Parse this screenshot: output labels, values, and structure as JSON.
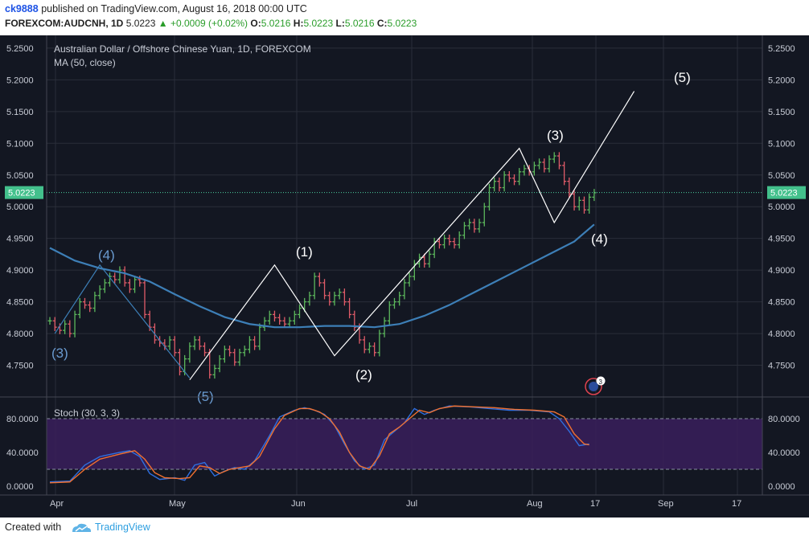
{
  "header": {
    "username": "ck9888",
    "published_text": "published on TradingView.com, August 16, 2018 00:00 UTC",
    "symbol": "FOREXCOM:AUDCNH, 1D",
    "last": "5.0223",
    "change": "+0.0009 (+0.02%)",
    "o_label": "O:",
    "o_value": "5.0216",
    "h_label": "H:",
    "h_value": "5.0223",
    "l_label": "L:",
    "l_value": "5.0216",
    "c_label": "C:",
    "c_value": "5.0223"
  },
  "legend": {
    "title": "Australian Dollar / Offshore Chinese Yuan, 1D, FOREXCOM",
    "ma_label": "MA (50, close)",
    "stoch_label": "Stoch (30, 3, 3)"
  },
  "footer": {
    "created": "Created with",
    "brand": "TradingView"
  },
  "colors": {
    "background": "#131722",
    "up": "#5cb85c",
    "down": "#e05b68",
    "ma": "#3d7fb7",
    "price_line": "#4cd1a0",
    "stoch_k": "#2f6fe0",
    "stoch_d": "#f07030",
    "stoch_band": "#3a1f5c"
  },
  "chart_data": {
    "type": "bar",
    "price_axis": {
      "min": 4.7,
      "max": 5.26,
      "ticks": [
        "5.2500",
        "5.2000",
        "5.1500",
        "5.1000",
        "5.0500",
        "5.0000",
        "4.9500",
        "4.9000",
        "4.8500",
        "4.8000",
        "4.7500"
      ]
    },
    "current_price_label": "5.0223",
    "time_axis": {
      "labels": [
        "Apr",
        "May",
        "Jun",
        "Jul",
        "Aug",
        "17",
        "Sep",
        "17"
      ]
    },
    "price_series": [
      {
        "d": 0,
        "v": 4.82
      },
      {
        "d": 1,
        "v": 4.81
      },
      {
        "d": 2,
        "v": 4.805
      },
      {
        "d": 3,
        "v": 4.815
      },
      {
        "d": 4,
        "v": 4.8
      },
      {
        "d": 5,
        "v": 4.83
      },
      {
        "d": 6,
        "v": 4.85
      },
      {
        "d": 7,
        "v": 4.845
      },
      {
        "d": 8,
        "v": 4.84
      },
      {
        "d": 9,
        "v": 4.86
      },
      {
        "d": 10,
        "v": 4.87
      },
      {
        "d": 11,
        "v": 4.88
      },
      {
        "d": 12,
        "v": 4.89
      },
      {
        "d": 13,
        "v": 4.885
      },
      {
        "d": 14,
        "v": 4.9
      },
      {
        "d": 15,
        "v": 4.88
      },
      {
        "d": 16,
        "v": 4.87
      },
      {
        "d": 17,
        "v": 4.885
      },
      {
        "d": 18,
        "v": 4.88
      },
      {
        "d": 19,
        "v": 4.83
      },
      {
        "d": 20,
        "v": 4.81
      },
      {
        "d": 21,
        "v": 4.79
      },
      {
        "d": 22,
        "v": 4.785
      },
      {
        "d": 23,
        "v": 4.78
      },
      {
        "d": 24,
        "v": 4.79
      },
      {
        "d": 25,
        "v": 4.77
      },
      {
        "d": 26,
        "v": 4.74
      },
      {
        "d": 27,
        "v": 4.76
      },
      {
        "d": 28,
        "v": 4.78
      },
      {
        "d": 29,
        "v": 4.79
      },
      {
        "d": 30,
        "v": 4.78
      },
      {
        "d": 31,
        "v": 4.77
      },
      {
        "d": 32,
        "v": 4.735
      },
      {
        "d": 33,
        "v": 4.745
      },
      {
        "d": 34,
        "v": 4.76
      },
      {
        "d": 35,
        "v": 4.775
      },
      {
        "d": 36,
        "v": 4.77
      },
      {
        "d": 37,
        "v": 4.755
      },
      {
        "d": 38,
        "v": 4.77
      },
      {
        "d": 39,
        "v": 4.775
      },
      {
        "d": 40,
        "v": 4.79
      },
      {
        "d": 41,
        "v": 4.78
      },
      {
        "d": 42,
        "v": 4.81
      },
      {
        "d": 43,
        "v": 4.82
      },
      {
        "d": 44,
        "v": 4.83
      },
      {
        "d": 45,
        "v": 4.825
      },
      {
        "d": 46,
        "v": 4.82
      },
      {
        "d": 47,
        "v": 4.815
      },
      {
        "d": 48,
        "v": 4.82
      },
      {
        "d": 49,
        "v": 4.83
      },
      {
        "d": 50,
        "v": 4.84
      },
      {
        "d": 51,
        "v": 4.85
      },
      {
        "d": 52,
        "v": 4.86
      },
      {
        "d": 53,
        "v": 4.89
      },
      {
        "d": 54,
        "v": 4.88
      },
      {
        "d": 55,
        "v": 4.86
      },
      {
        "d": 56,
        "v": 4.85
      },
      {
        "d": 57,
        "v": 4.86
      },
      {
        "d": 58,
        "v": 4.865
      },
      {
        "d": 59,
        "v": 4.85
      },
      {
        "d": 60,
        "v": 4.83
      },
      {
        "d": 61,
        "v": 4.81
      },
      {
        "d": 62,
        "v": 4.79
      },
      {
        "d": 63,
        "v": 4.775
      },
      {
        "d": 64,
        "v": 4.78
      },
      {
        "d": 65,
        "v": 4.77
      },
      {
        "d": 66,
        "v": 4.8
      },
      {
        "d": 67,
        "v": 4.82
      },
      {
        "d": 68,
        "v": 4.845
      },
      {
        "d": 69,
        "v": 4.85
      },
      {
        "d": 70,
        "v": 4.86
      },
      {
        "d": 71,
        "v": 4.88
      },
      {
        "d": 72,
        "v": 4.89
      },
      {
        "d": 73,
        "v": 4.91
      },
      {
        "d": 74,
        "v": 4.92
      },
      {
        "d": 75,
        "v": 4.91
      },
      {
        "d": 76,
        "v": 4.925
      },
      {
        "d": 77,
        "v": 4.945
      },
      {
        "d": 78,
        "v": 4.94
      },
      {
        "d": 79,
        "v": 4.95
      },
      {
        "d": 80,
        "v": 4.945
      },
      {
        "d": 81,
        "v": 4.94
      },
      {
        "d": 82,
        "v": 4.955
      },
      {
        "d": 83,
        "v": 4.97
      },
      {
        "d": 84,
        "v": 4.975
      },
      {
        "d": 85,
        "v": 4.965
      },
      {
        "d": 86,
        "v": 4.975
      },
      {
        "d": 87,
        "v": 5.0
      },
      {
        "d": 88,
        "v": 5.03
      },
      {
        "d": 89,
        "v": 5.04
      },
      {
        "d": 90,
        "v": 5.03
      },
      {
        "d": 91,
        "v": 5.05
      },
      {
        "d": 92,
        "v": 5.045
      },
      {
        "d": 93,
        "v": 5.04
      },
      {
        "d": 94,
        "v": 5.055
      },
      {
        "d": 95,
        "v": 5.06
      },
      {
        "d": 96,
        "v": 5.055
      },
      {
        "d": 97,
        "v": 5.065
      },
      {
        "d": 98,
        "v": 5.07
      },
      {
        "d": 99,
        "v": 5.06
      },
      {
        "d": 100,
        "v": 5.075
      },
      {
        "d": 101,
        "v": 5.08
      },
      {
        "d": 102,
        "v": 5.065
      },
      {
        "d": 103,
        "v": 5.04
      },
      {
        "d": 104,
        "v": 5.02
      },
      {
        "d": 105,
        "v": 5.0
      },
      {
        "d": 106,
        "v": 5.01
      },
      {
        "d": 107,
        "v": 4.995
      },
      {
        "d": 108,
        "v": 5.015
      },
      {
        "d": 109,
        "v": 5.022
      }
    ],
    "ma_series": [
      {
        "d": 0,
        "v": 4.935
      },
      {
        "d": 5,
        "v": 4.915
      },
      {
        "d": 10,
        "v": 4.903
      },
      {
        "d": 15,
        "v": 4.895
      },
      {
        "d": 20,
        "v": 4.882
      },
      {
        "d": 25,
        "v": 4.862
      },
      {
        "d": 30,
        "v": 4.843
      },
      {
        "d": 35,
        "v": 4.826
      },
      {
        "d": 40,
        "v": 4.815
      },
      {
        "d": 45,
        "v": 4.81
      },
      {
        "d": 50,
        "v": 4.81
      },
      {
        "d": 55,
        "v": 4.812
      },
      {
        "d": 60,
        "v": 4.812
      },
      {
        "d": 65,
        "v": 4.81
      },
      {
        "d": 70,
        "v": 4.815
      },
      {
        "d": 75,
        "v": 4.828
      },
      {
        "d": 80,
        "v": 4.845
      },
      {
        "d": 85,
        "v": 4.865
      },
      {
        "d": 90,
        "v": 4.885
      },
      {
        "d": 95,
        "v": 4.905
      },
      {
        "d": 100,
        "v": 4.925
      },
      {
        "d": 105,
        "v": 4.945
      },
      {
        "d": 109,
        "v": 4.972
      }
    ],
    "elliott_old": {
      "points": [
        {
          "d": 1,
          "v": 4.8
        },
        {
          "d": 10,
          "v": 4.908
        },
        {
          "d": 28,
          "v": 4.73
        }
      ],
      "labels": [
        "(3)",
        "(4)",
        "(5)"
      ]
    },
    "elliott_new": {
      "points": [
        {
          "d": 28,
          "v": 4.727
        },
        {
          "d": 45,
          "v": 4.908
        },
        {
          "d": 57,
          "v": 4.765
        },
        {
          "d": 94,
          "v": 5.092
        },
        {
          "d": 101,
          "v": 4.975
        },
        {
          "d": 117,
          "v": 5.182
        }
      ],
      "labels": [
        "(1)",
        "(2)",
        "(3)",
        "(4)",
        "(5)"
      ]
    },
    "stoch": {
      "axis_ticks": [
        "80.0000",
        "40.0000",
        "0.0000"
      ],
      "k": [
        {
          "d": 0,
          "v": 5
        },
        {
          "d": 4,
          "v": 6
        },
        {
          "d": 7,
          "v": 25
        },
        {
          "d": 10,
          "v": 35
        },
        {
          "d": 14,
          "v": 40
        },
        {
          "d": 16,
          "v": 42
        },
        {
          "d": 18,
          "v": 35
        },
        {
          "d": 20,
          "v": 15
        },
        {
          "d": 22,
          "v": 8
        },
        {
          "d": 25,
          "v": 10
        },
        {
          "d": 27,
          "v": 7
        },
        {
          "d": 29,
          "v": 25
        },
        {
          "d": 31,
          "v": 28
        },
        {
          "d": 33,
          "v": 12
        },
        {
          "d": 35,
          "v": 18
        },
        {
          "d": 37,
          "v": 22
        },
        {
          "d": 39,
          "v": 20
        },
        {
          "d": 41,
          "v": 30
        },
        {
          "d": 44,
          "v": 60
        },
        {
          "d": 46,
          "v": 82
        },
        {
          "d": 49,
          "v": 90
        },
        {
          "d": 51,
          "v": 93
        },
        {
          "d": 53,
          "v": 90
        },
        {
          "d": 55,
          "v": 85
        },
        {
          "d": 57,
          "v": 72
        },
        {
          "d": 59,
          "v": 50
        },
        {
          "d": 61,
          "v": 30
        },
        {
          "d": 63,
          "v": 20
        },
        {
          "d": 65,
          "v": 25
        },
        {
          "d": 67,
          "v": 55
        },
        {
          "d": 69,
          "v": 65
        },
        {
          "d": 71,
          "v": 75
        },
        {
          "d": 73,
          "v": 92
        },
        {
          "d": 75,
          "v": 85
        },
        {
          "d": 77,
          "v": 90
        },
        {
          "d": 80,
          "v": 95
        },
        {
          "d": 84,
          "v": 94
        },
        {
          "d": 88,
          "v": 92
        },
        {
          "d": 92,
          "v": 90
        },
        {
          "d": 96,
          "v": 90
        },
        {
          "d": 100,
          "v": 88
        },
        {
          "d": 102,
          "v": 80
        },
        {
          "d": 104,
          "v": 65
        },
        {
          "d": 106,
          "v": 48
        },
        {
          "d": 108,
          "v": 50
        }
      ],
      "d": [
        {
          "d": 0,
          "v": 4
        },
        {
          "d": 4,
          "v": 5
        },
        {
          "d": 7,
          "v": 20
        },
        {
          "d": 10,
          "v": 32
        },
        {
          "d": 14,
          "v": 38
        },
        {
          "d": 17,
          "v": 42
        },
        {
          "d": 19,
          "v": 32
        },
        {
          "d": 21,
          "v": 16
        },
        {
          "d": 23,
          "v": 10
        },
        {
          "d": 26,
          "v": 9
        },
        {
          "d": 28,
          "v": 10
        },
        {
          "d": 30,
          "v": 24
        },
        {
          "d": 32,
          "v": 22
        },
        {
          "d": 34,
          "v": 15
        },
        {
          "d": 36,
          "v": 20
        },
        {
          "d": 38,
          "v": 22
        },
        {
          "d": 40,
          "v": 24
        },
        {
          "d": 42,
          "v": 35
        },
        {
          "d": 45,
          "v": 68
        },
        {
          "d": 47,
          "v": 84
        },
        {
          "d": 50,
          "v": 92
        },
        {
          "d": 52,
          "v": 92
        },
        {
          "d": 54,
          "v": 88
        },
        {
          "d": 56,
          "v": 80
        },
        {
          "d": 58,
          "v": 64
        },
        {
          "d": 60,
          "v": 40
        },
        {
          "d": 62,
          "v": 24
        },
        {
          "d": 64,
          "v": 20
        },
        {
          "d": 66,
          "v": 36
        },
        {
          "d": 68,
          "v": 62
        },
        {
          "d": 70,
          "v": 70
        },
        {
          "d": 72,
          "v": 80
        },
        {
          "d": 74,
          "v": 90
        },
        {
          "d": 76,
          "v": 87
        },
        {
          "d": 78,
          "v": 92
        },
        {
          "d": 81,
          "v": 95
        },
        {
          "d": 85,
          "v": 94
        },
        {
          "d": 89,
          "v": 93
        },
        {
          "d": 93,
          "v": 91
        },
        {
          "d": 97,
          "v": 90
        },
        {
          "d": 101,
          "v": 88
        },
        {
          "d": 103,
          "v": 82
        },
        {
          "d": 105,
          "v": 62
        },
        {
          "d": 107,
          "v": 50
        },
        {
          "d": 108,
          "v": 49
        }
      ]
    },
    "event_badge_count": "3"
  }
}
